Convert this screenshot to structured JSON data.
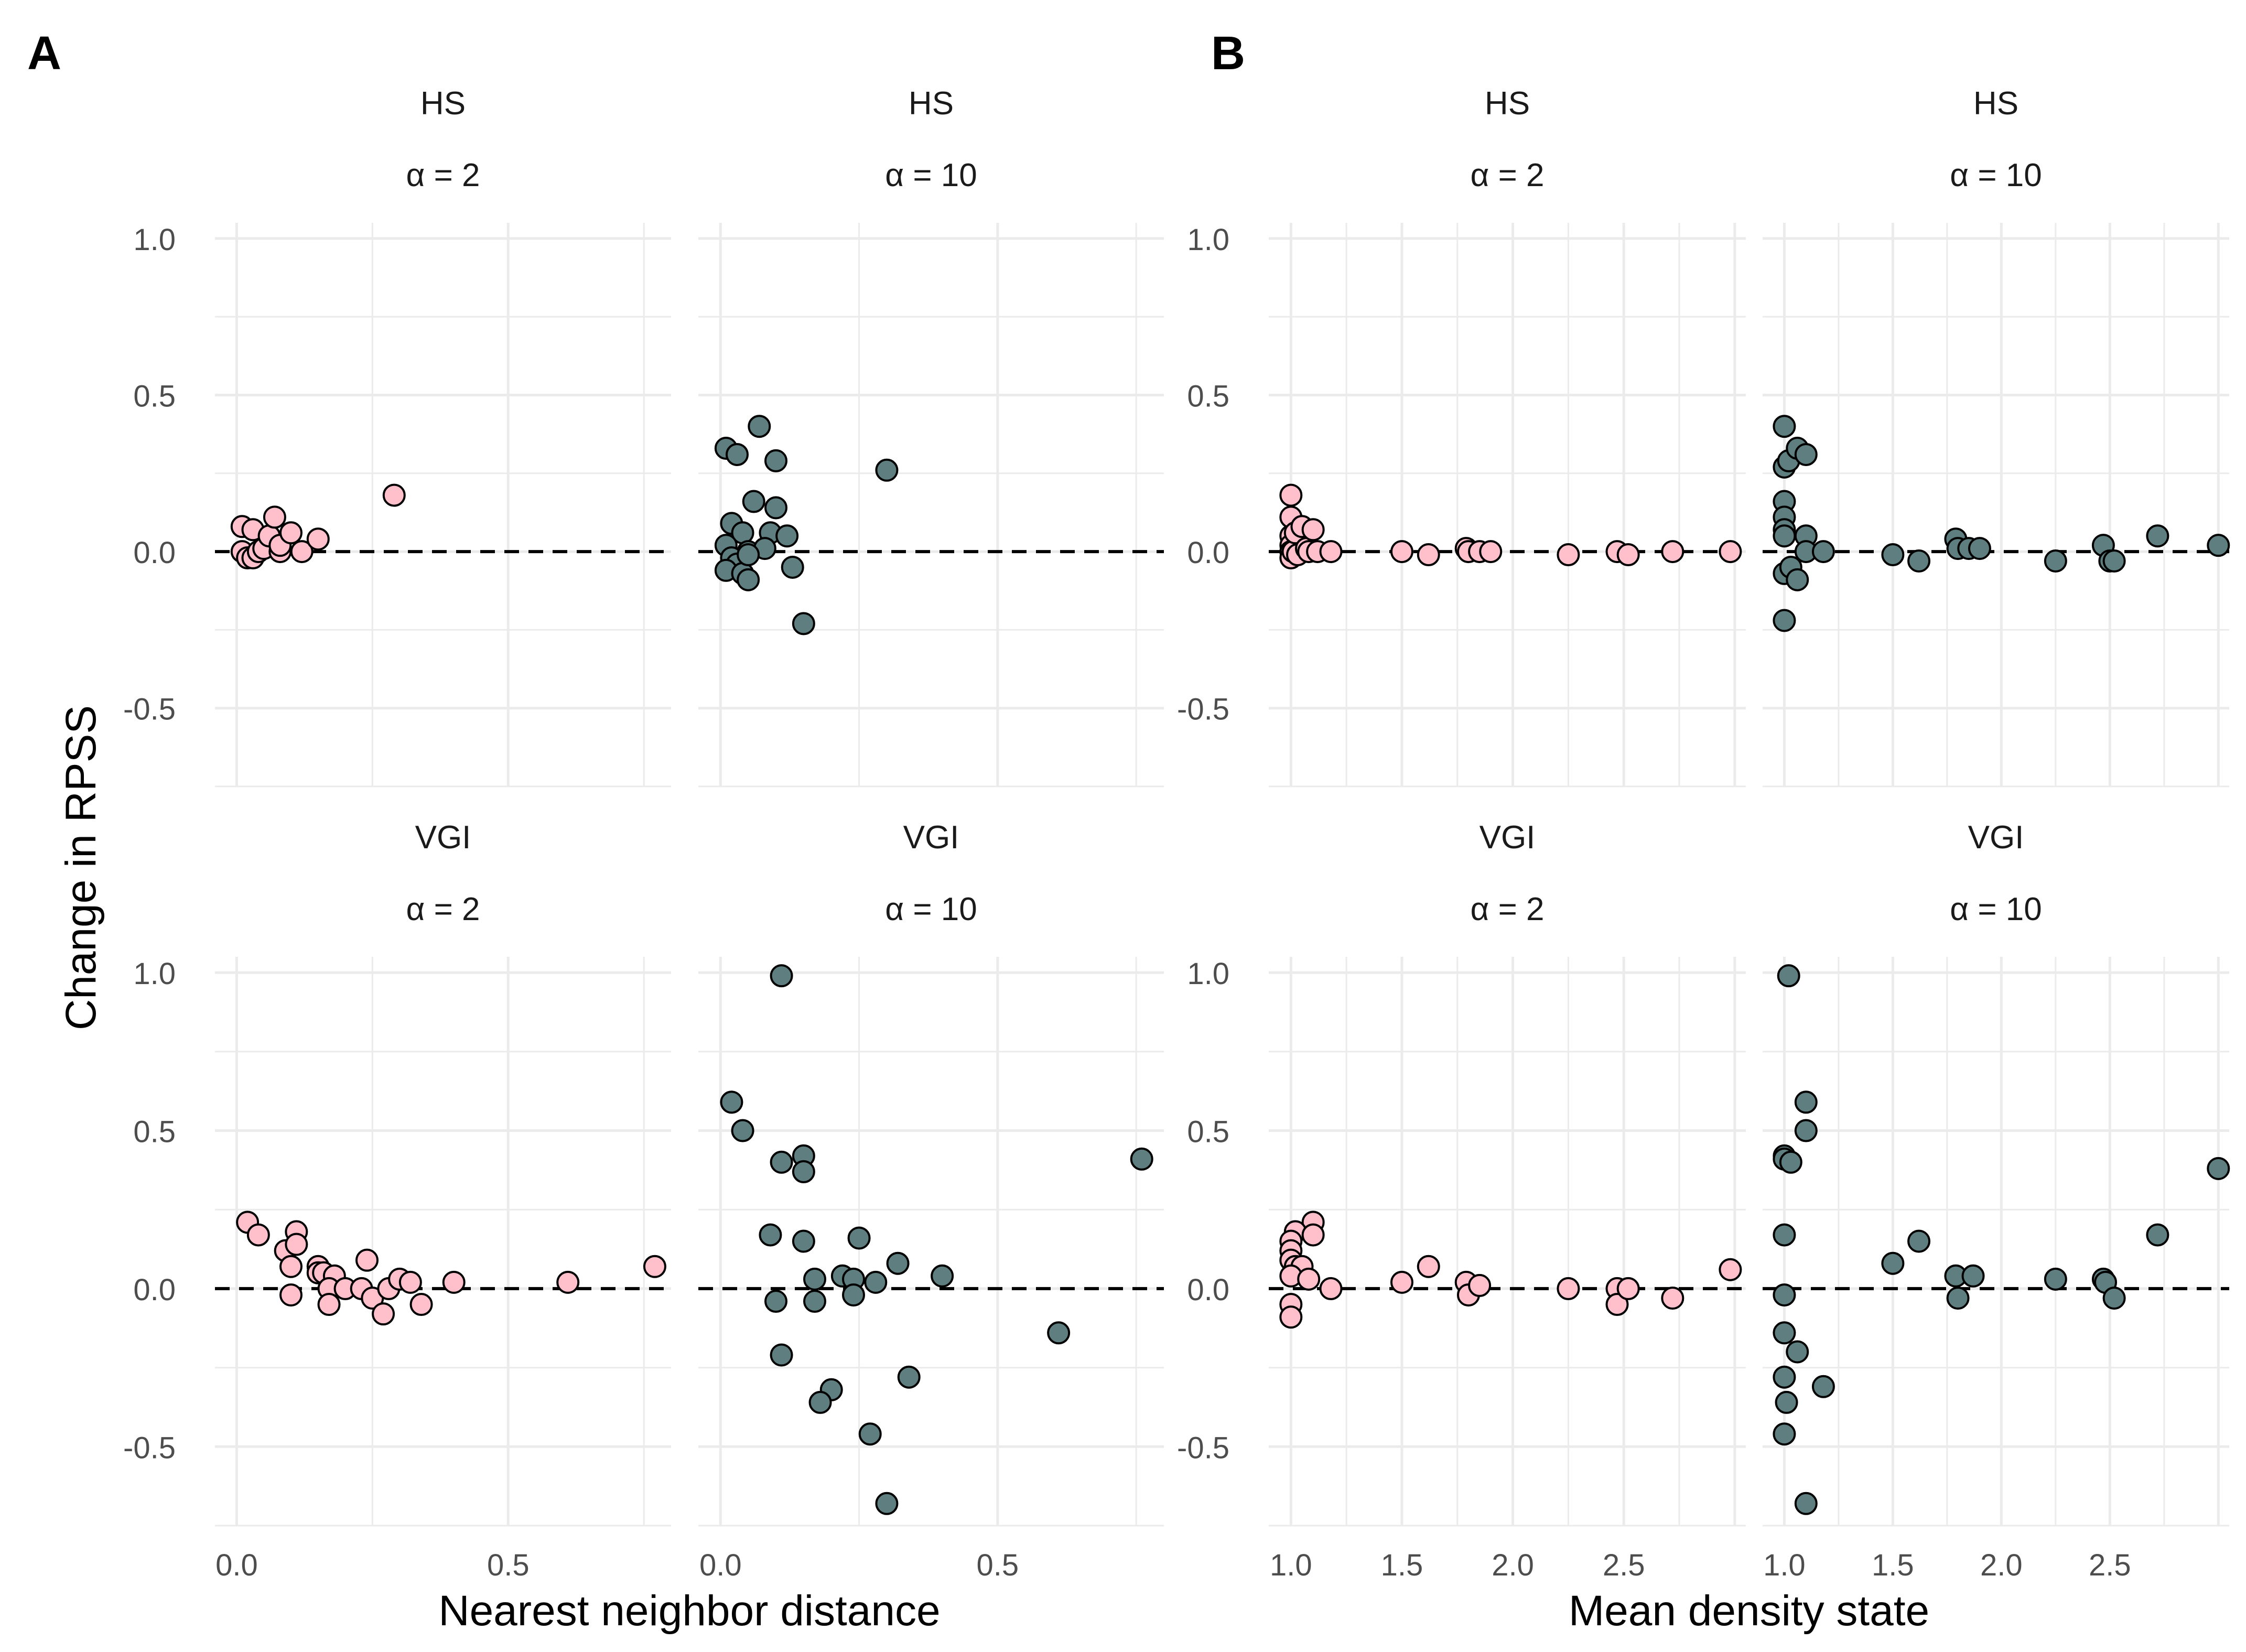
{
  "figure": {
    "panel_labels": [
      "A",
      "B"
    ],
    "ylabel": "Change in RPSS"
  },
  "colors": {
    "alpha2_fill": "#FFC0CB",
    "alpha10_fill": "#5F7E80",
    "point_stroke": "#000000",
    "grid": "#EBEBEB",
    "zero_line": "#000000"
  },
  "chart_data": [
    {
      "type": "scatter",
      "panel": "A",
      "xlabel": "Nearest neighbor distance",
      "ylabel": "Change in RPSS",
      "x_ticks": [
        "0.0",
        "0.5"
      ],
      "y_ticks": [
        "-0.5",
        "0.0",
        "0.5",
        "1.0"
      ],
      "facet_rows": [
        "HS",
        "VGI"
      ],
      "facets": [
        {
          "row": "HS",
          "col": "α = 2",
          "xlim": [
            -0.04,
            0.8
          ],
          "ylim": [
            -0.75,
            1.05
          ],
          "points": [
            [
              0.01,
              0.08
            ],
            [
              0.01,
              0.0
            ],
            [
              0.02,
              -0.02
            ],
            [
              0.03,
              0.07
            ],
            [
              0.03,
              -0.02
            ],
            [
              0.04,
              0.0
            ],
            [
              0.05,
              0.01
            ],
            [
              0.06,
              0.05
            ],
            [
              0.07,
              0.11
            ],
            [
              0.08,
              0.0
            ],
            [
              0.08,
              0.02
            ],
            [
              0.1,
              0.06
            ],
            [
              0.12,
              0.0
            ],
            [
              0.15,
              0.04
            ],
            [
              0.29,
              0.18
            ]
          ]
        },
        {
          "row": "HS",
          "col": "α = 10",
          "xlim": [
            -0.04,
            0.8
          ],
          "ylim": [
            -0.75,
            1.05
          ],
          "points": [
            [
              0.01,
              0.33
            ],
            [
              0.03,
              0.31
            ],
            [
              0.07,
              0.4
            ],
            [
              0.1,
              0.29
            ],
            [
              0.3,
              0.26
            ],
            [
              0.06,
              0.16
            ],
            [
              0.1,
              0.14
            ],
            [
              0.02,
              0.09
            ],
            [
              0.04,
              0.06
            ],
            [
              0.09,
              0.06
            ],
            [
              0.12,
              0.05
            ],
            [
              0.01,
              0.02
            ],
            [
              0.05,
              0.0
            ],
            [
              0.08,
              0.01
            ],
            [
              0.02,
              -0.02
            ],
            [
              0.03,
              -0.04
            ],
            [
              0.01,
              -0.06
            ],
            [
              0.04,
              -0.07
            ],
            [
              0.05,
              -0.09
            ],
            [
              0.13,
              -0.05
            ],
            [
              0.15,
              -0.23
            ],
            [
              0.05,
              -0.01
            ]
          ]
        },
        {
          "row": "VGI",
          "col": "α = 2",
          "xlim": [
            -0.04,
            0.8
          ],
          "ylim": [
            -0.75,
            1.05
          ],
          "points": [
            [
              0.02,
              0.21
            ],
            [
              0.04,
              0.17
            ],
            [
              0.09,
              0.12
            ],
            [
              0.11,
              0.18
            ],
            [
              0.11,
              0.14
            ],
            [
              0.1,
              0.07
            ],
            [
              0.1,
              -0.02
            ],
            [
              0.15,
              0.07
            ],
            [
              0.15,
              0.05
            ],
            [
              0.16,
              0.05
            ],
            [
              0.18,
              0.04
            ],
            [
              0.17,
              0.0
            ],
            [
              0.17,
              -0.05
            ],
            [
              0.2,
              0.0
            ],
            [
              0.23,
              0.0
            ],
            [
              0.24,
              0.09
            ],
            [
              0.25,
              -0.03
            ],
            [
              0.27,
              -0.08
            ],
            [
              0.28,
              0.0
            ],
            [
              0.3,
              0.03
            ],
            [
              0.32,
              0.02
            ],
            [
              0.34,
              -0.05
            ],
            [
              0.4,
              0.02
            ],
            [
              0.61,
              0.02
            ],
            [
              0.77,
              0.07
            ]
          ]
        },
        {
          "row": "VGI",
          "col": "α = 10",
          "xlim": [
            -0.04,
            0.8
          ],
          "ylim": [
            -0.75,
            1.05
          ],
          "points": [
            [
              0.11,
              0.99
            ],
            [
              0.02,
              0.59
            ],
            [
              0.04,
              0.5
            ],
            [
              0.11,
              0.4
            ],
            [
              0.15,
              0.42
            ],
            [
              0.15,
              0.37
            ],
            [
              0.09,
              0.17
            ],
            [
              0.15,
              0.15
            ],
            [
              0.25,
              0.16
            ],
            [
              0.17,
              0.03
            ],
            [
              0.22,
              0.04
            ],
            [
              0.24,
              0.03
            ],
            [
              0.28,
              0.02
            ],
            [
              0.32,
              0.08
            ],
            [
              0.4,
              0.04
            ],
            [
              0.1,
              -0.04
            ],
            [
              0.17,
              -0.04
            ],
            [
              0.24,
              -0.02
            ],
            [
              0.11,
              -0.21
            ],
            [
              0.2,
              -0.32
            ],
            [
              0.18,
              -0.36
            ],
            [
              0.34,
              -0.28
            ],
            [
              0.27,
              -0.46
            ],
            [
              0.3,
              -0.68
            ],
            [
              0.61,
              -0.14
            ],
            [
              0.76,
              0.41
            ]
          ]
        }
      ]
    },
    {
      "type": "scatter",
      "panel": "B",
      "xlabel": "Mean density state",
      "ylabel": "Change in RPSS",
      "x_ticks": [
        "1.0",
        "1.5",
        "2.0",
        "2.5"
      ],
      "y_ticks": [
        "-0.5",
        "0.0",
        "0.5",
        "1.0"
      ],
      "facet_rows": [
        "HS",
        "VGI"
      ],
      "facets": [
        {
          "row": "HS",
          "col": "α = 2",
          "xlim": [
            0.9,
            3.05
          ],
          "ylim": [
            -0.75,
            1.05
          ],
          "points": [
            [
              1.0,
              0.18
            ],
            [
              1.0,
              0.11
            ],
            [
              1.0,
              0.05
            ],
            [
              1.0,
              0.02
            ],
            [
              1.0,
              0.0
            ],
            [
              1.0,
              -0.02
            ],
            [
              1.01,
              0.0
            ],
            [
              1.02,
              0.06
            ],
            [
              1.03,
              -0.01
            ],
            [
              1.05,
              0.08
            ],
            [
              1.07,
              0.01
            ],
            [
              1.08,
              0.0
            ],
            [
              1.1,
              0.07
            ],
            [
              1.12,
              0.0
            ],
            [
              1.18,
              0.0
            ],
            [
              1.5,
              0.0
            ],
            [
              1.62,
              -0.01
            ],
            [
              1.79,
              0.01
            ],
            [
              1.8,
              0.0
            ],
            [
              1.85,
              0.0
            ],
            [
              1.9,
              0.0
            ],
            [
              2.25,
              -0.01
            ],
            [
              2.47,
              0.0
            ],
            [
              2.52,
              -0.01
            ],
            [
              2.72,
              0.0
            ],
            [
              2.98,
              0.0
            ]
          ]
        },
        {
          "row": "HS",
          "col": "α = 10",
          "xlim": [
            0.9,
            3.05
          ],
          "ylim": [
            -0.75,
            1.05
          ],
          "points": [
            [
              1.0,
              0.4
            ],
            [
              1.0,
              0.27
            ],
            [
              1.02,
              0.29
            ],
            [
              1.06,
              0.33
            ],
            [
              1.1,
              0.31
            ],
            [
              1.0,
              0.16
            ],
            [
              1.0,
              0.11
            ],
            [
              1.0,
              0.07
            ],
            [
              1.0,
              0.05
            ],
            [
              1.0,
              -0.07
            ],
            [
              1.03,
              -0.05
            ],
            [
              1.06,
              -0.09
            ],
            [
              1.1,
              0.05
            ],
            [
              1.1,
              0.0
            ],
            [
              1.18,
              0.0
            ],
            [
              1.0,
              -0.22
            ],
            [
              1.5,
              -0.01
            ],
            [
              1.62,
              -0.03
            ],
            [
              1.79,
              0.04
            ],
            [
              1.8,
              0.01
            ],
            [
              1.85,
              0.01
            ],
            [
              1.9,
              0.01
            ],
            [
              2.25,
              -0.03
            ],
            [
              2.47,
              0.02
            ],
            [
              2.5,
              -0.03
            ],
            [
              2.52,
              -0.03
            ],
            [
              2.72,
              0.05
            ],
            [
              3.0,
              0.02
            ]
          ]
        },
        {
          "row": "VGI",
          "col": "α = 2",
          "xlim": [
            0.9,
            3.05
          ],
          "ylim": [
            -0.75,
            1.05
          ],
          "points": [
            [
              1.1,
              0.21
            ],
            [
              1.02,
              0.18
            ],
            [
              1.0,
              0.15
            ],
            [
              1.1,
              0.17
            ],
            [
              1.0,
              0.12
            ],
            [
              1.0,
              0.09
            ],
            [
              1.02,
              0.07
            ],
            [
              1.05,
              0.07
            ],
            [
              1.0,
              0.04
            ],
            [
              1.08,
              0.03
            ],
            [
              1.18,
              0.0
            ],
            [
              1.0,
              -0.05
            ],
            [
              1.0,
              -0.09
            ],
            [
              1.5,
              0.02
            ],
            [
              1.62,
              0.07
            ],
            [
              1.79,
              0.02
            ],
            [
              1.8,
              -0.02
            ],
            [
              1.85,
              0.01
            ],
            [
              2.25,
              0.0
            ],
            [
              2.47,
              0.0
            ],
            [
              2.47,
              -0.05
            ],
            [
              2.52,
              0.0
            ],
            [
              2.72,
              -0.03
            ],
            [
              2.98,
              0.06
            ]
          ]
        },
        {
          "row": "VGI",
          "col": "α = 10",
          "xlim": [
            0.9,
            3.05
          ],
          "ylim": [
            -0.75,
            1.05
          ],
          "points": [
            [
              1.02,
              0.99
            ],
            [
              1.1,
              0.59
            ],
            [
              1.1,
              0.5
            ],
            [
              1.0,
              0.42
            ],
            [
              1.0,
              0.41
            ],
            [
              1.03,
              0.4
            ],
            [
              1.0,
              0.17
            ],
            [
              1.0,
              -0.02
            ],
            [
              1.0,
              -0.14
            ],
            [
              1.06,
              -0.2
            ],
            [
              1.0,
              -0.28
            ],
            [
              1.01,
              -0.36
            ],
            [
              1.0,
              -0.46
            ],
            [
              1.1,
              -0.68
            ],
            [
              1.18,
              -0.31
            ],
            [
              1.5,
              0.08
            ],
            [
              1.62,
              0.15
            ],
            [
              1.79,
              0.04
            ],
            [
              1.8,
              -0.03
            ],
            [
              1.87,
              0.04
            ],
            [
              2.25,
              0.03
            ],
            [
              2.47,
              0.03
            ],
            [
              2.48,
              0.02
            ],
            [
              2.52,
              -0.03
            ],
            [
              2.72,
              0.17
            ],
            [
              3.0,
              0.38
            ]
          ]
        }
      ]
    }
  ]
}
